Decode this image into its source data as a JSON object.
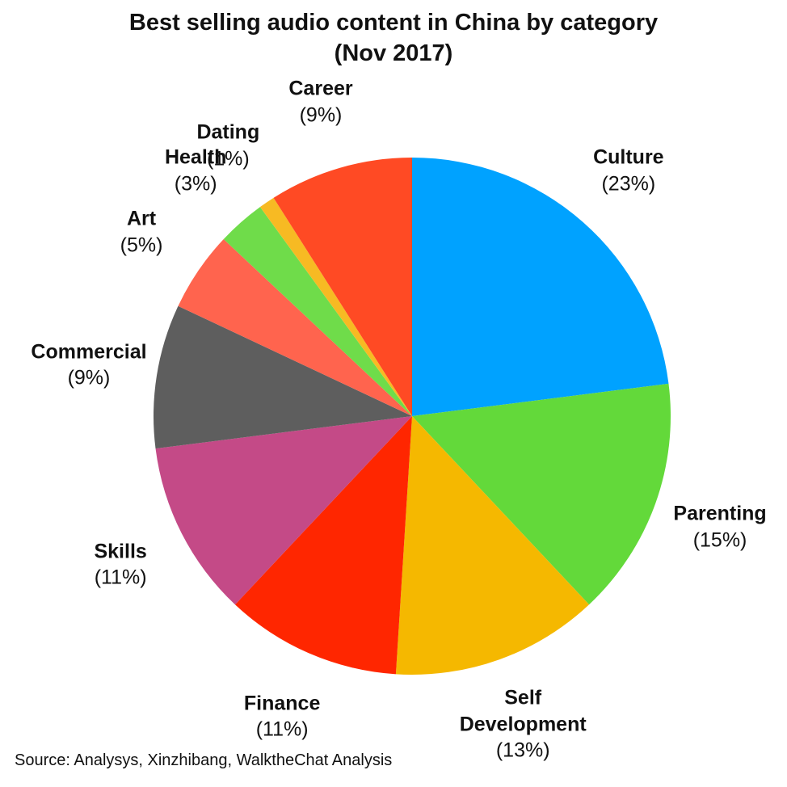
{
  "chart_data": {
    "type": "pie",
    "title": "Best selling audio content in China by category",
    "subtitle": "(Nov 2017)",
    "categories": [
      "Culture",
      "Parenting",
      "Self Development",
      "Finance",
      "Skills",
      "Commercial",
      "Art",
      "Health",
      "Dating",
      "Career"
    ],
    "values": [
      23,
      15,
      13,
      11,
      11,
      9,
      5,
      3,
      1,
      9
    ],
    "value_labels": [
      "(23%)",
      "(15%)",
      "(13%)",
      "(11%)",
      "(11%)",
      "(9%)",
      "(5%)",
      "(3%)",
      "(1%)",
      "(9%)"
    ],
    "colors": [
      "#00a2ff",
      "#63d93a",
      "#f5b800",
      "#ff2600",
      "#c44a87",
      "#5e5e5e",
      "#ff644e",
      "#6fdc4a",
      "#f7ba23",
      "#ff4a24"
    ],
    "source": "Source: Analysys, Xinzhibang, WalktheChat Analysis"
  }
}
